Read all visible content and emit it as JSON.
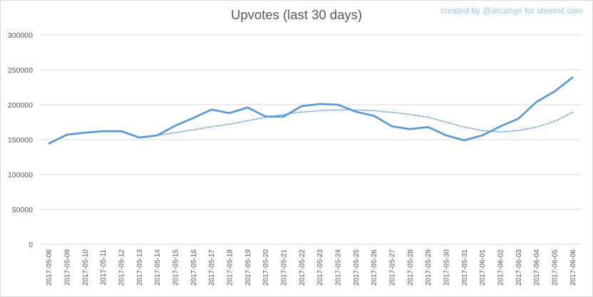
{
  "chart_data": {
    "type": "line",
    "title": "Upvotes (last 30 days)",
    "credit": "created by @arcange for steemit.com",
    "xlabel": "",
    "ylabel": "",
    "ylim": [
      0,
      300000
    ],
    "yticks": [
      "0",
      "50000",
      "100000",
      "150000",
      "200000",
      "250000",
      "300000"
    ],
    "grid": true,
    "legend": "none",
    "categories": [
      "2017-05-08",
      "2017-05-09",
      "2017-05-10",
      "2017-05-11",
      "2017-05-12",
      "2017-05-13",
      "2017-05-14",
      "2017-05-15",
      "2017-05-16",
      "2017-05-17",
      "2017-05-18",
      "2017-05-19",
      "2017-05-20",
      "2017-05-21",
      "2017-05-22",
      "2017-05-23",
      "2017-05-24",
      "2017-05-25",
      "2017-05-26",
      "2017-05-27",
      "2017-05-28",
      "2017-05-29",
      "2017-05-30",
      "2017-05-31",
      "2017-06-01",
      "2017-06-02",
      "2017-06-03",
      "2017-06-04",
      "2017-06-05",
      "2017-06-06"
    ],
    "series": [
      {
        "kind": "data",
        "color": "#5b9bd5",
        "values": [
          144500,
          157000,
          160000,
          162000,
          162000,
          153000,
          156000,
          170000,
          181000,
          193000,
          188000,
          196000,
          183000,
          183000,
          198000,
          201000,
          200000,
          190000,
          184000,
          169000,
          165000,
          168000,
          156000,
          149000,
          156000,
          169000,
          180000,
          204000,
          219000,
          239000
        ]
      },
      {
        "kind": "trendline",
        "color": "#5b9bd5",
        "style": "dotted",
        "values": [
          null,
          null,
          null,
          null,
          null,
          null,
          156000,
          160000,
          164000,
          168500,
          172000,
          177000,
          182000,
          186000,
          189500,
          191500,
          192500,
          192500,
          191500,
          189000,
          186000,
          182000,
          175000,
          168000,
          163000,
          161000,
          163000,
          168000,
          176000,
          189000
        ]
      }
    ]
  }
}
